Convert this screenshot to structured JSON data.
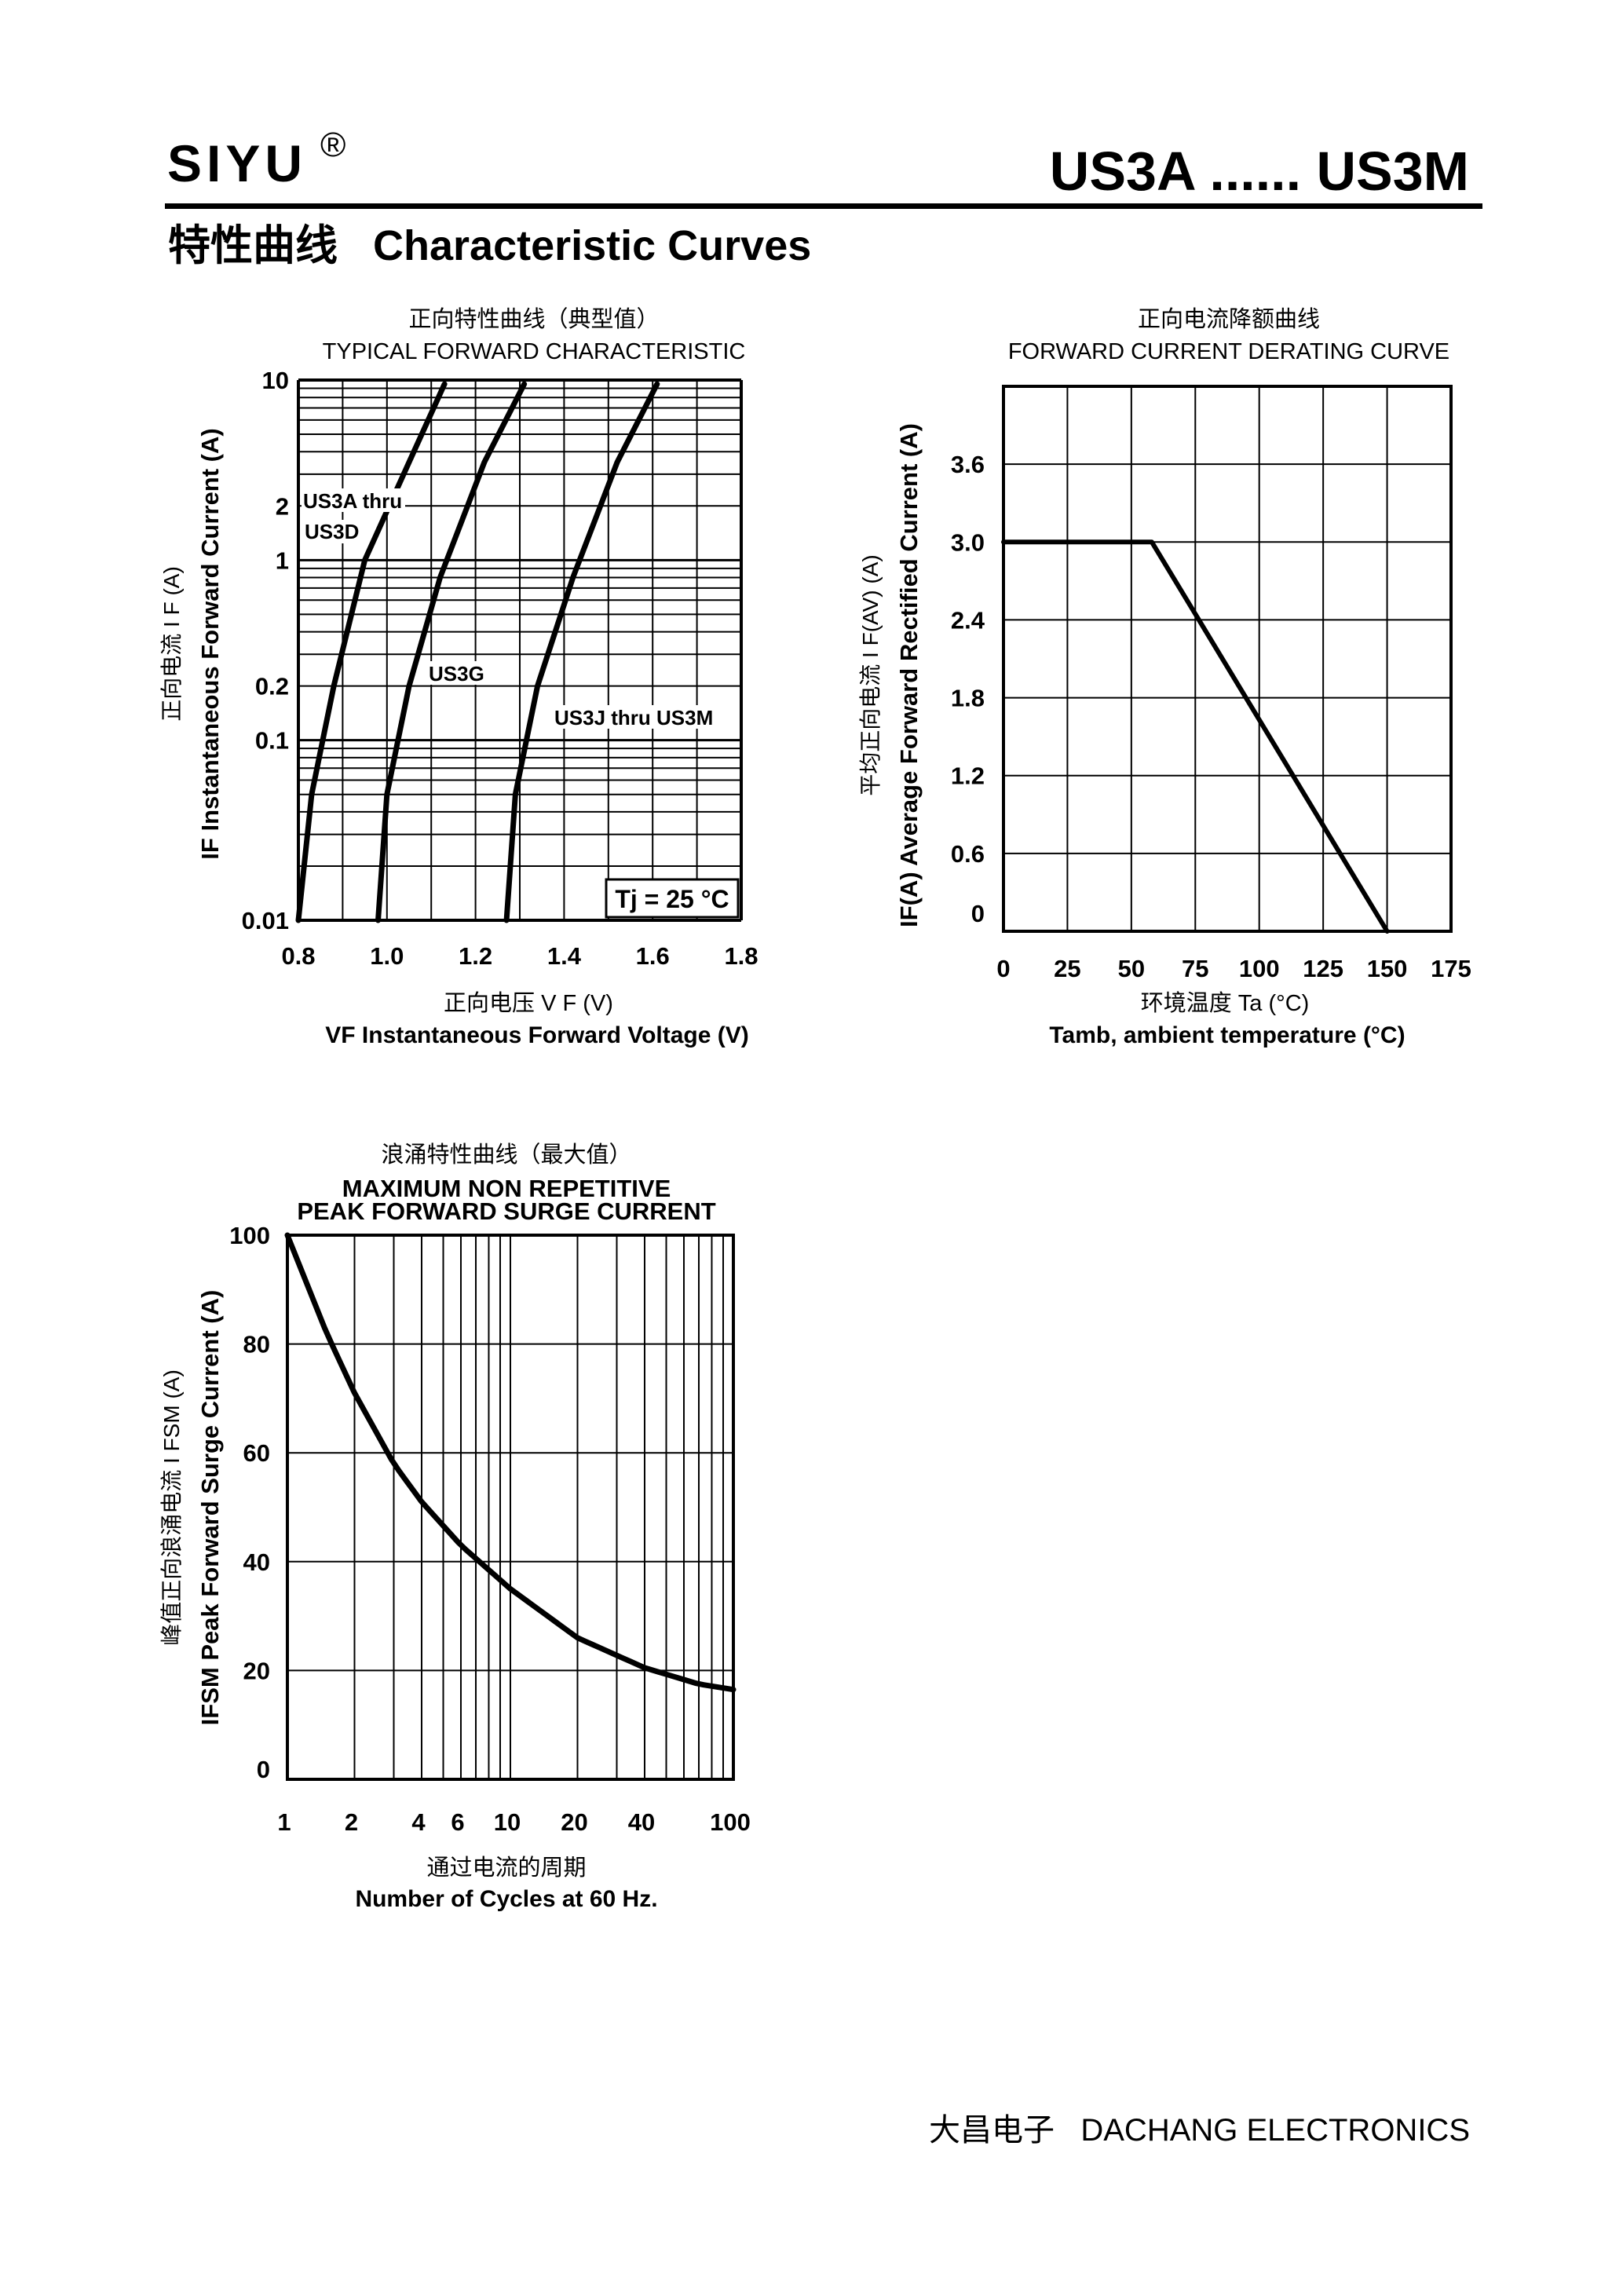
{
  "header": {
    "brand": "SIYU",
    "registered": "®",
    "model": "US3A ...... US3M",
    "section_title": "特性曲线   Characteristic Curves"
  },
  "footer": {
    "text": "大昌电子   DACHANG ELECTRONICS"
  },
  "chart_data": [
    {
      "type": "line",
      "title_cn": "正向特性曲线（典型值）",
      "title": "TYPICAL FORWARD CHARACTERISTIC",
      "xlabel_cn": "正向电压    V F (V)",
      "xlabel": "VF  Instantaneous Forward Voltage (V)",
      "ylabel_cn": "正向电流    I F (A)",
      "ylabel": "IF Instantaneous Forward Current (A)",
      "x_ticks": [
        "0.8",
        "1.0",
        "1.2",
        "1.4",
        "1.6",
        "1.8"
      ],
      "y_ticks": [
        "10",
        "2",
        "1",
        "0.2",
        "0.1",
        "0.01"
      ],
      "xlim": [
        0.8,
        1.8
      ],
      "ylim": [
        0.01,
        10
      ],
      "y_scale": "log",
      "annotation": "Tj = 25 °C",
      "series": [
        {
          "name": "US3A thru US3D",
          "points": [
            [
              0.8,
              0.01
            ],
            [
              0.83,
              0.05
            ],
            [
              0.88,
              0.2
            ],
            [
              0.95,
              1.0
            ],
            [
              1.05,
              3.5
            ],
            [
              1.13,
              9.5
            ]
          ]
        },
        {
          "name": "US3G",
          "points": [
            [
              0.98,
              0.01
            ],
            [
              1.0,
              0.05
            ],
            [
              1.05,
              0.2
            ],
            [
              1.12,
              0.8
            ],
            [
              1.22,
              3.5
            ],
            [
              1.31,
              9.5
            ]
          ]
        },
        {
          "name": "US3J thru US3M",
          "points": [
            [
              1.27,
              0.01
            ],
            [
              1.29,
              0.05
            ],
            [
              1.34,
              0.2
            ],
            [
              1.42,
              0.8
            ],
            [
              1.52,
              3.5
            ],
            [
              1.61,
              9.5
            ]
          ]
        }
      ]
    },
    {
      "type": "line",
      "title_cn": "正向电流降额曲线",
      "title": "FORWARD CURRENT DERATING CURVE",
      "xlabel_cn": "环境温度  Ta (°C)",
      "xlabel": "Tamb, ambient temperature (°C)",
      "ylabel_cn": "平均正向电流    I F(AV)  (A)",
      "ylabel": "IF(A) Average Forward Rectified Current (A)",
      "x_ticks": [
        "0",
        "25",
        "50",
        "75",
        "100",
        "125",
        "150",
        "175"
      ],
      "y_ticks": [
        "3.6",
        "3.0",
        "2.4",
        "1.8",
        "1.2",
        "0.6",
        "0"
      ],
      "xlim": [
        0,
        175
      ],
      "ylim": [
        0,
        4.2
      ],
      "series": [
        {
          "name": "",
          "points": [
            [
              0,
              3.0
            ],
            [
              58,
              3.0
            ],
            [
              150,
              0
            ]
          ]
        }
      ]
    },
    {
      "type": "line",
      "title_cn": "浪涌特性曲线（最大值）",
      "title": "MAXIMUM NON REPETITIVE",
      "subtitle": "PEAK FORWARD SURGE CURRENT",
      "xlabel_cn": "通过电流的周期",
      "xlabel": "Number  of  Cycles at 60 Hz.",
      "ylabel_cn": "峰值正向浪涌电流   I FSM (A)",
      "ylabel": "IFSM Peak Forward Surge Current (A)",
      "x_ticks": [
        "1",
        "2",
        "4",
        "6",
        "10",
        "20",
        "40",
        "100"
      ],
      "y_ticks": [
        "100",
        "80",
        "60",
        "40",
        "20",
        "0"
      ],
      "xlim": [
        1,
        100
      ],
      "x_scale": "log",
      "ylim": [
        0,
        100
      ],
      "series": [
        {
          "name": "",
          "points": [
            [
              1,
              100
            ],
            [
              1.5,
              82
            ],
            [
              2,
              71
            ],
            [
              3,
              58
            ],
            [
              4,
              51
            ],
            [
              6,
              43
            ],
            [
              10,
              35
            ],
            [
              20,
              26
            ],
            [
              40,
              20.5
            ],
            [
              70,
              17.5
            ],
            [
              100,
              16.5
            ]
          ]
        }
      ]
    }
  ]
}
